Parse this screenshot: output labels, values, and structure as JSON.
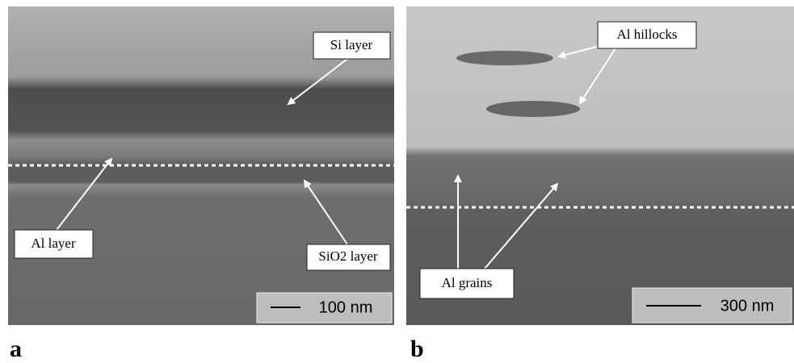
{
  "panel_a": {
    "label": "a",
    "annotations": [
      "Si layer",
      "Al layer",
      "SiO2 layer"
    ],
    "scale_bar": "100 nm"
  },
  "panel_b": {
    "label": "b",
    "annotations": [
      "Al hillocks",
      "Al grains"
    ],
    "scale_bar": "300 nm"
  }
}
